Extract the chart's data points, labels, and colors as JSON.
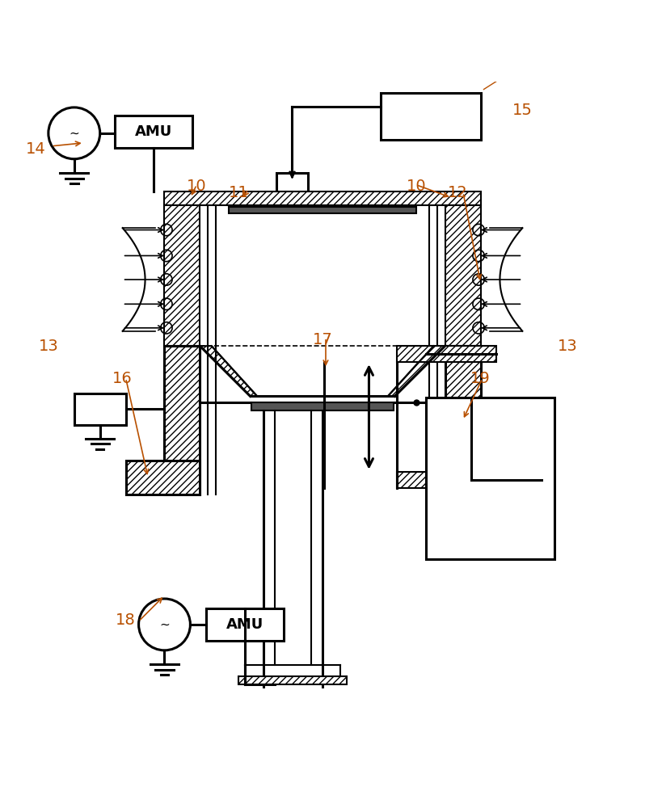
{
  "bg_color": "#ffffff",
  "line_color": "#000000",
  "label_color": "#b85000",
  "fig_width": 7.98,
  "fig_height": 10.0,
  "labels": {
    "14": [
      0.055,
      0.895,
      "14"
    ],
    "10L": [
      0.305,
      0.838,
      "10"
    ],
    "11": [
      0.37,
      0.828,
      "11"
    ],
    "10R": [
      0.645,
      0.838,
      "10"
    ],
    "12": [
      0.71,
      0.828,
      "12"
    ],
    "13L": [
      0.075,
      0.59,
      "13"
    ],
    "13R": [
      0.88,
      0.59,
      "13"
    ],
    "15": [
      0.81,
      0.955,
      "15"
    ],
    "16": [
      0.19,
      0.54,
      "16"
    ],
    "17": [
      0.5,
      0.6,
      "17"
    ],
    "18": [
      0.195,
      0.165,
      "18"
    ],
    "19": [
      0.745,
      0.54,
      "19"
    ]
  }
}
